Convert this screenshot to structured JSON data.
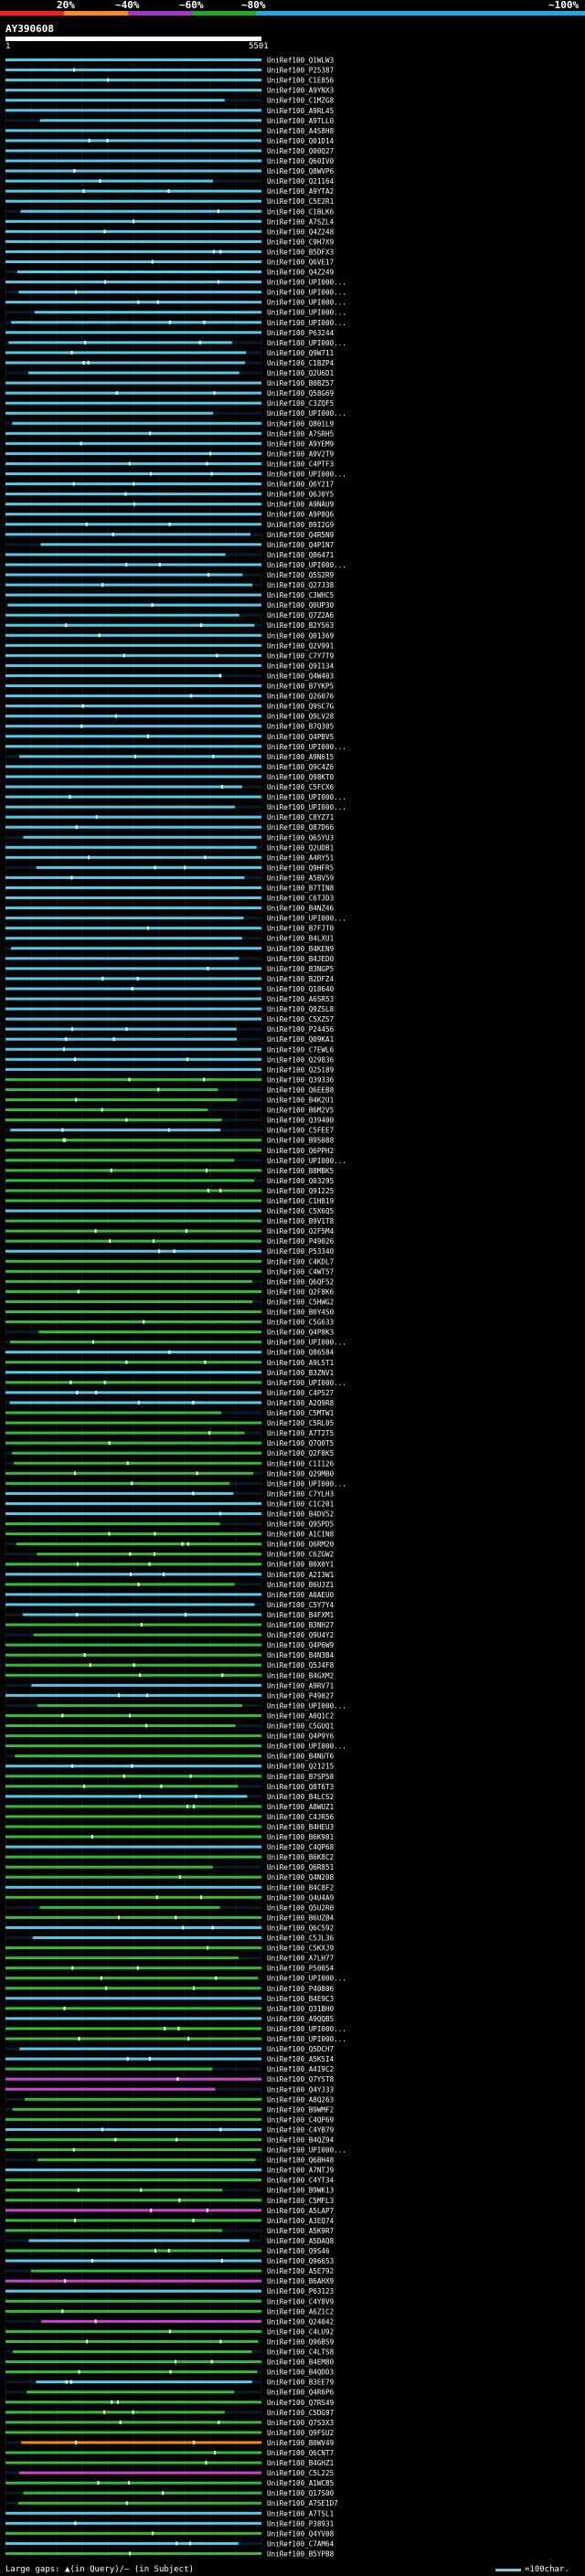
{
  "legend": {
    "labels": [
      "20%",
      "~40%",
      "~60%",
      "~80%",
      "~100%"
    ],
    "colors": [
      "#ee2222",
      "#ff8822",
      "#aa33cc",
      "#22aa22",
      "#22aadd"
    ]
  },
  "query": {
    "name": "AY390608",
    "start": "1",
    "end": "5501"
  },
  "footer": {
    "gaps_text": "Large gaps: ▲(in Query)/— (in Subject)",
    "scale_text": "=100char."
  },
  "chart_data": {
    "type": "alignment-map",
    "query_length": 5501,
    "hit_ids": [
      "UniRef100_Q1WLW3",
      "UniRef100_P25387",
      "UniRef100_C1E856",
      "UniRef100_A9YNX3",
      "UniRef100_C1MZG8",
      "UniRef100_A9RL45",
      "UniRef100_A9TLL0",
      "UniRef100_A4S8H8",
      "UniRef100_Q01D14",
      "UniRef100_Q00Q27",
      "UniRef100_Q60IV0",
      "UniRef100_Q8WVP6",
      "UniRef100_Q21164",
      "UniRef100_A9YTA2",
      "UniRef100_C5E2R1",
      "UniRef100_C1BLK6",
      "UniRef100_A7SZL4",
      "UniRef100_Q4Z248",
      "UniRef100_C9H7X9",
      "UniRef100_B5DFX3",
      "UniRef100_Q6VE17",
      "UniRef100_Q4Z249",
      "UniRef100_UPI000...",
      "UniRef100_UPI000...",
      "UniRef100_UPI000...",
      "UniRef100_UPI000...",
      "UniRef100_UPI000...",
      "UniRef100_P63244",
      "UniRef100_UPI000...",
      "UniRef100_Q9W711",
      "UniRef100_C1BZP4",
      "UniRef100_Q2U6D1",
      "UniRef100_B0BZ57",
      "UniRef100_Q58G69",
      "UniRef100_C3ZQF5",
      "UniRef100_UPI000...",
      "UniRef100_Q801L9",
      "UniRef100_A7SRH5",
      "UniRef100_A9YEM9",
      "UniRef100_A9V2T9",
      "UniRef100_C4PTF3",
      "UniRef100_UPI000...",
      "UniRef100_Q6Y217",
      "UniRef100_Q6J0Y5",
      "UniRef100_A9NAU9",
      "UniRef100_A9P8Q6",
      "UniRef100_B9I2G9",
      "UniRef100_Q4R5N9",
      "UniRef100_Q4P1N7",
      "UniRef100_Q86471",
      "UniRef100_UPI000...",
      "UniRef100_Q5S2R9",
      "UniRef100_Q27J38",
      "UniRef100_C3WHC5",
      "UniRef100_Q0UP30",
      "UniRef100_Q7Z2A6",
      "UniRef100_B2YS63",
      "UniRef100_Q01369",
      "UniRef100_Q2V991",
      "UniRef100_C7Y7T9",
      "UniRef100_Q9I134",
      "UniRef100_Q4W403",
      "UniRef100_B7YKP5",
      "UniRef100_Q26076",
      "UniRef100_Q9SC7G",
      "UniRef100_Q9LV28",
      "UniRef100_B7Q305",
      "UniRef100_Q4PBV5",
      "UniRef100_UPI000...",
      "UniRef100_A9N615",
      "UniRef100_Q9C4Z6",
      "UniRef100_Q98KT0",
      "UniRef100_C5FCX6",
      "UniRef100_UPI000...",
      "UniRef100_UPI000...",
      "UniRef100_C8YZ71",
      "UniRef100_Q87D66",
      "UniRef100_Q65YU3",
      "UniRef100_Q2UDB1",
      "UniRef100_A4RY51",
      "UniRef100_Q9HFR5",
      "UniRef100_A5BV59",
      "UniRef100_B7TIN8",
      "UniRef100_C6TJD3",
      "UniRef100_B4NZ46",
      "UniRef100_UPI000...",
      "UniRef100_B7FJT0",
      "UniRef100_B4LXU1",
      "UniRef100_B4KEN9",
      "UniRef100_B4JED0",
      "UniRef100_B3NGP5",
      "UniRef100_B2DFZ4",
      "UniRef100_Q18640",
      "UniRef100_A6SR53",
      "UniRef100_Q9ZSL8",
      "UniRef100_C5XZS7",
      "UniRef100_P24456",
      "UniRef100_Q09KA1",
      "UniRef100_C7EWL6",
      "UniRef100_Q29836",
      "UniRef100_Q25189",
      "UniRef100_Q39336",
      "UniRef100_Q6EEB8",
      "UniRef100_B4K2U1",
      "UniRef100_B6M2V5",
      "UniRef100_Q39400",
      "UniRef100_C5FEE7",
      "UniRef100_B9S088",
      "UniRef100_Q6PPH2",
      "UniRef100_UPI000...",
      "UniRef100_B8MBK5",
      "UniRef100_Q03295",
      "UniRef100_Q91225",
      "UniRef100_C1H819",
      "UniRef100_C5X6Q5",
      "UniRef100_B9V1T8",
      "UniRef100_Q2F5M4",
      "UniRef100_P49026",
      "UniRef100_P53340",
      "UniRef100_C4KDL7",
      "UniRef100_C4WT57",
      "UniRef100_Q6QF52",
      "UniRef100_Q2F8K6",
      "UniRef100_C5HWG2",
      "UniRef100_B0Y4S0",
      "UniRef100_C5G633",
      "UniRef100_Q4P8K3",
      "UniRef100_UPI000...",
      "UniRef100_Q86584",
      "UniRef100_A9L5T1",
      "UniRef100_B3ZNV1",
      "UniRef100_UPI000...",
      "UniRef100_C4PS27",
      "UniRef100_A2Q9R8",
      "UniRef100_C5MTW1",
      "UniRef100_C5RL05",
      "UniRef100_A7T2T5",
      "UniRef100_Q7Q0T5",
      "UniRef100_Q2F8K5",
      "UniRef100_C1I126",
      "UniRef100_Q29MB0",
      "UniRef100_UPI000...",
      "UniRef100_C7YLH3",
      "UniRef100_C1C201",
      "UniRef100_B4DV52",
      "UniRef100_Q95PD5",
      "UniRef100_A1CIN8",
      "UniRef100_Q6RM20",
      "UniRef100_C6ZGW2",
      "UniRef100_B0X0Y1",
      "UniRef100_A2I3W1",
      "UniRef100_B6UJZ1",
      "UniRef100_A0AEU0",
      "UniRef100_C5Y7Y4",
      "UniRef100_B4FXM1",
      "UniRef100_B3NH27",
      "UniRef100_Q9U4Y2",
      "UniRef100_Q4P6W9",
      "UniRef100_B4N3B4",
      "UniRef100_Q5J4F8",
      "UniRef100_B4GXM2",
      "UniRef100_A9RV71",
      "UniRef100_P49027",
      "UniRef100_UPI000...",
      "UniRef100_A0Q1C2",
      "UniRef100_C5GUQ1",
      "UniRef100_Q4P9Y6",
      "UniRef100_UPI000...",
      "UniRef100_B4NUT6",
      "UniRef100_Q21215",
      "UniRef100_B7SP58",
      "UniRef100_Q8T6T3",
      "UniRef100_B4LCS2",
      "UniRef100_A8WUZ1",
      "UniRef100_C4JR56",
      "UniRef100_B4HEU3",
      "UniRef100_B6K901",
      "UniRef100_C4QP68",
      "UniRef100_B6K8C2",
      "UniRef100_Q6R851",
      "UniRef100_Q4N208",
      "UniRef100_B4C8F2",
      "UniRef100_Q4U4A9",
      "UniRef100_Q5U2R0",
      "UniRef100_B6UZB4",
      "UniRef100_Q6C592",
      "UniRef100_C5JL36",
      "UniRef100_C5KXJ9",
      "UniRef100_A7LH77",
      "UniRef100_P50054",
      "UniRef100_UPI000...",
      "UniRef100_P40806",
      "UniRef100_B4E9C3",
      "UniRef100_Q31BH0",
      "UniRef100_A9QQB5",
      "UniRef100_UPI000...",
      "UniRef100_UPI000...",
      "UniRef100_Q5DCH7",
      "UniRef100_A5K5I4",
      "UniRef100_A4I9C2",
      "UniRef100_Q7YST8",
      "UniRef100_Q4YJ33",
      "UniRef100_A8Q263",
      "UniRef100_B9WMF2",
      "UniRef100_C4QP69",
      "UniRef100_C4YB79",
      "UniRef100_B4QZ94",
      "UniRef100_UPI000...",
      "UniRef100_Q6BH48",
      "UniRef100_A7NTJ9",
      "UniRef100_C4YT34",
      "UniRef100_B9WK13",
      "UniRef100_C5MFL3",
      "UniRef100_A5LAP7",
      "UniRef100_A3EQ74",
      "UniRef100_A5K9R7",
      "UniRef100_A5DAQ8",
      "UniRef100_Q9S46",
      "UniRef100_Q96653",
      "UniRef100_A5E792",
      "UniRef100_B6AHX9",
      "UniRef100_P63123",
      "UniRef100_C4Y8V9",
      "UniRef100_A6Z1C2",
      "UniRef100_Q24042",
      "UniRef100_C4LU92",
      "UniRef100_Q96BS9",
      "UniRef100_C4LTS8",
      "UniRef100_B4EM80",
      "UniRef100_B4QDD3",
      "UniRef100_B3EE79",
      "UniRef100_Q4R6P6",
      "UniRef100_Q7RS49",
      "UniRef100_C5DG97",
      "UniRef100_Q7S3X3",
      "UniRef100_Q9FSU2",
      "UniRef100_B0WV49",
      "UniRef100_Q6CNT7",
      "UniRef100_B4GHZ1",
      "UniRef100_C5L225",
      "UniRef100_A1WCB5",
      "UniRef100_Q17S00",
      "UniRef100_A7SE1D7",
      "UniRef100_A7TSL1",
      "UniRef100_P38931",
      "UniRef100_Q4YV08",
      "UniRef100_C7AM64",
      "UniRef100_B5YPB8"
    ],
    "colors": {
      "blue": "#55c8e8",
      "green": "#33bb33",
      "purple": "#cc44cc",
      "orange": "#ff8800",
      "white": "#ffffff",
      "gap": "#0a1a2a"
    }
  }
}
